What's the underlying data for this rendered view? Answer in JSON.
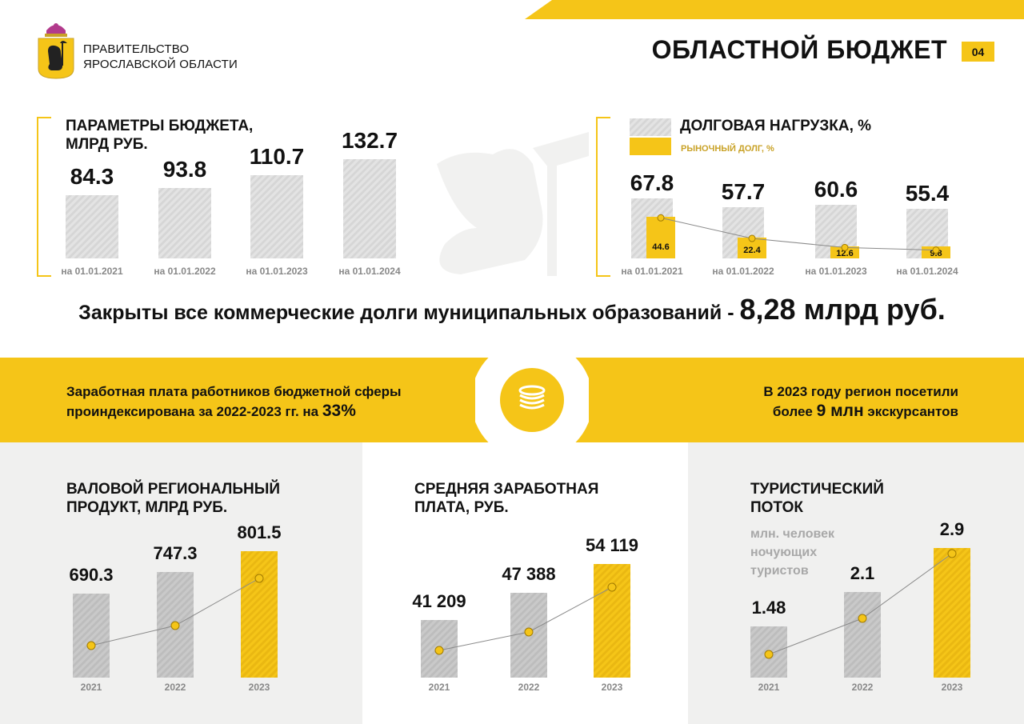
{
  "header": {
    "org_line1": "ПРАВИТЕЛЬСТВО",
    "org_line2": "ЯРОСЛАВСКОЙ ОБЛАСТИ",
    "title": "ОБЛАСТНОЙ БЮДЖЕТ",
    "page_number": "04"
  },
  "colors": {
    "accent": "#f5c518",
    "grey": "#d6d6d6",
    "panel_bg": "#f0f0ef"
  },
  "budget": {
    "title_line1": "ПАРАМЕТРЫ БЮДЖЕТА,",
    "title_line2": "МЛРД РУБ."
  },
  "debt": {
    "title": "ДОЛГОВАЯ НАГРУЗКА, %",
    "legend_market": "РЫНОЧНЫЙ ДОЛГ, %"
  },
  "statement": {
    "text": "Закрыты все коммерческие долги муниципальных образований - ",
    "highlight": "8,28 млрд руб."
  },
  "band": {
    "left_line1": "Заработная плата работников бюджетной сферы",
    "left_line2": "проиндексирована за 2022-2023 гг. на",
    "left_value": "33%",
    "right_line1": "В 2023 году регион посетили",
    "right_pre": "более",
    "right_value": "9 млн",
    "right_post": "экскурсантов",
    "center_icon": "coins-stack-icon"
  },
  "grp": {
    "title_line1": "ВАЛОВОЙ РЕГИОНАЛЬНЫЙ",
    "title_line2": "ПРОДУКТ, МЛРД РУБ."
  },
  "salary": {
    "title_line1": "СРЕДНЯЯ ЗАРАБОТНАЯ",
    "title_line2": "ПЛАТА, РУБ."
  },
  "tourism": {
    "title_line1": "ТУРИСТИЧЕСКИЙ",
    "title_line2": "ПОТОК",
    "sub_line1": "млн. человек",
    "sub_line2": "ночующих",
    "sub_line3": "туристов"
  },
  "chart_data": [
    {
      "type": "bar",
      "title": "ПАРАМЕТРЫ БЮДЖЕТА, МЛРД РУБ.",
      "categories": [
        "на 01.01.2021",
        "на 01.01.2022",
        "на 01.01.2023",
        "на 01.01.2024"
      ],
      "values": [
        84.3,
        93.8,
        110.7,
        132.7
      ],
      "labels": [
        "84.3",
        "93.8",
        "110.7",
        "132.7"
      ]
    },
    {
      "type": "bar",
      "title": "ДОЛГОВАЯ НАГРУЗКА, %",
      "categories": [
        "на 01.01.2021",
        "на 01.01.2022",
        "на 01.01.2023",
        "на 01.01.2024"
      ],
      "series": [
        {
          "name": "ДОЛГОВАЯ НАГРУЗКА, %",
          "values": [
            67.8,
            57.7,
            60.6,
            55.4
          ],
          "labels": [
            "67.8",
            "57.7",
            "60.6",
            "55.4"
          ]
        },
        {
          "name": "РЫНОЧНЫЙ ДОЛГ, %",
          "values": [
            44.6,
            22.4,
            12.6,
            9.8
          ],
          "labels": [
            "44.6",
            "22.4",
            "12.6",
            "9.8"
          ]
        }
      ]
    },
    {
      "type": "bar",
      "title": "ВАЛОВОЙ РЕГИОНАЛЬНЫЙ ПРОДУКТ, МЛРД РУБ.",
      "categories": [
        "2021",
        "2022",
        "2023"
      ],
      "values": [
        690.3,
        747.3,
        801.5
      ],
      "labels": [
        "690.3",
        "747.3",
        "801.5"
      ]
    },
    {
      "type": "bar",
      "title": "СРЕДНЯЯ ЗАРАБОТНАЯ ПЛАТА, РУБ.",
      "categories": [
        "2021",
        "2022",
        "2023"
      ],
      "values": [
        41209,
        47388,
        54119
      ],
      "labels": [
        "41 209",
        "47 388",
        "54 119"
      ]
    },
    {
      "type": "bar",
      "title": "ТУРИСТИЧЕСКИЙ ПОТОК",
      "categories": [
        "2021",
        "2022",
        "2023"
      ],
      "values": [
        1.48,
        2.1,
        2.9
      ],
      "labels": [
        "1.48",
        "2.1",
        "2.9"
      ]
    }
  ]
}
